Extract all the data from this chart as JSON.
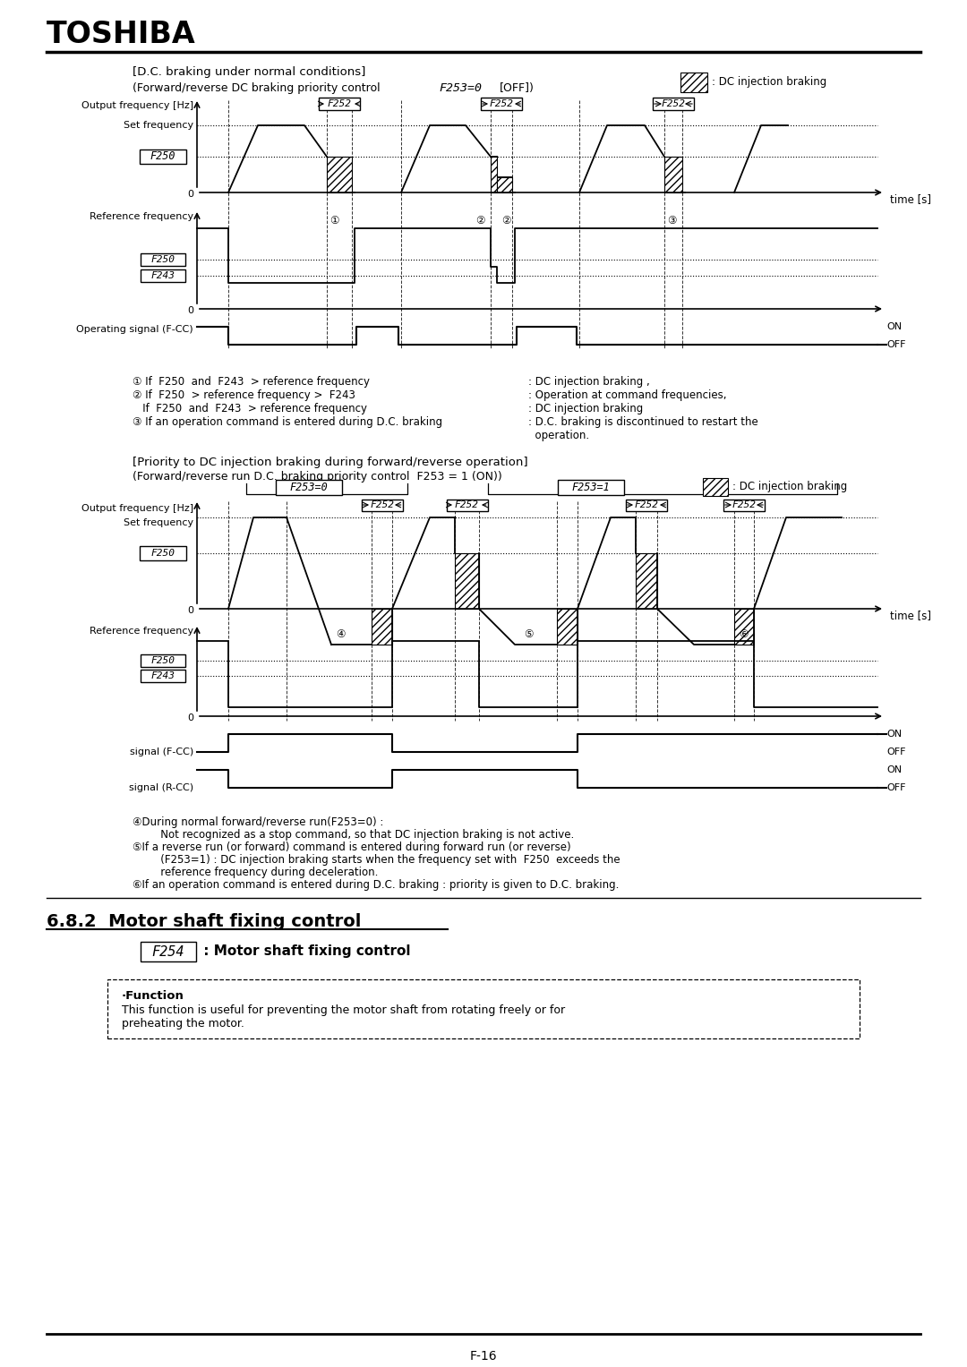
{
  "bg_color": "#ffffff",
  "title": "TOSHIBA",
  "footer": "F-16",
  "s1_title": "[D.C. braking under normal conditions]",
  "s1_sub1": "(Forward/reverse DC braking priority control  ",
  "s1_sub2": "F253=0",
  "s1_sub3": "[OFF])",
  "s2_title": "[Priority to DC injection braking during forward/reverse operation]",
  "s2_sub": "(Forward/reverse run D.C. braking priority control  F253 = 1 (ON))",
  "legend_text": ": DC injection braking",
  "s3_title": "6.8.2  Motor shaft fixing control",
  "s3_sub": "F254",
  "s3_sub2": " : Motor shaft fixing control",
  "func_title": "·Function",
  "func_text1": "This function is useful for preventing the motor shaft from rotating freely or for",
  "func_text2": "preheating the motor.",
  "n1_1": "① If  F250  and  F243  > reference frequency",
  "n1_1r": ": DC injection braking ,",
  "n1_2": "② If  F250  > reference frequency >  F243",
  "n1_2r": ": Operation at command frequencies,",
  "n1_3": "   If  F250  and  F243  > reference frequency",
  "n1_3r": ": DC injection braking",
  "n1_4": "③ If an operation command is entered during D.C. braking",
  "n1_4r": ": D.C. braking is discontinued to restart the",
  "n1_5r": "  operation.",
  "n2_1": "④During normal forward/reverse run(F253=0) :",
  "n2_2": "   Not recognized as a stop command, so that DC injection braking is not active.",
  "n2_3": "⑤If a reverse run (or forward) command is entered during forward run (or reverse)",
  "n2_4": "   (F253=1) : DC injection braking starts when the frequency set with  F250  exceeds the",
  "n2_5": "   reference frequency during deceleration.",
  "n2_6": "⑥If an operation command is entered during D.C. braking : priority is given to D.C. braking."
}
